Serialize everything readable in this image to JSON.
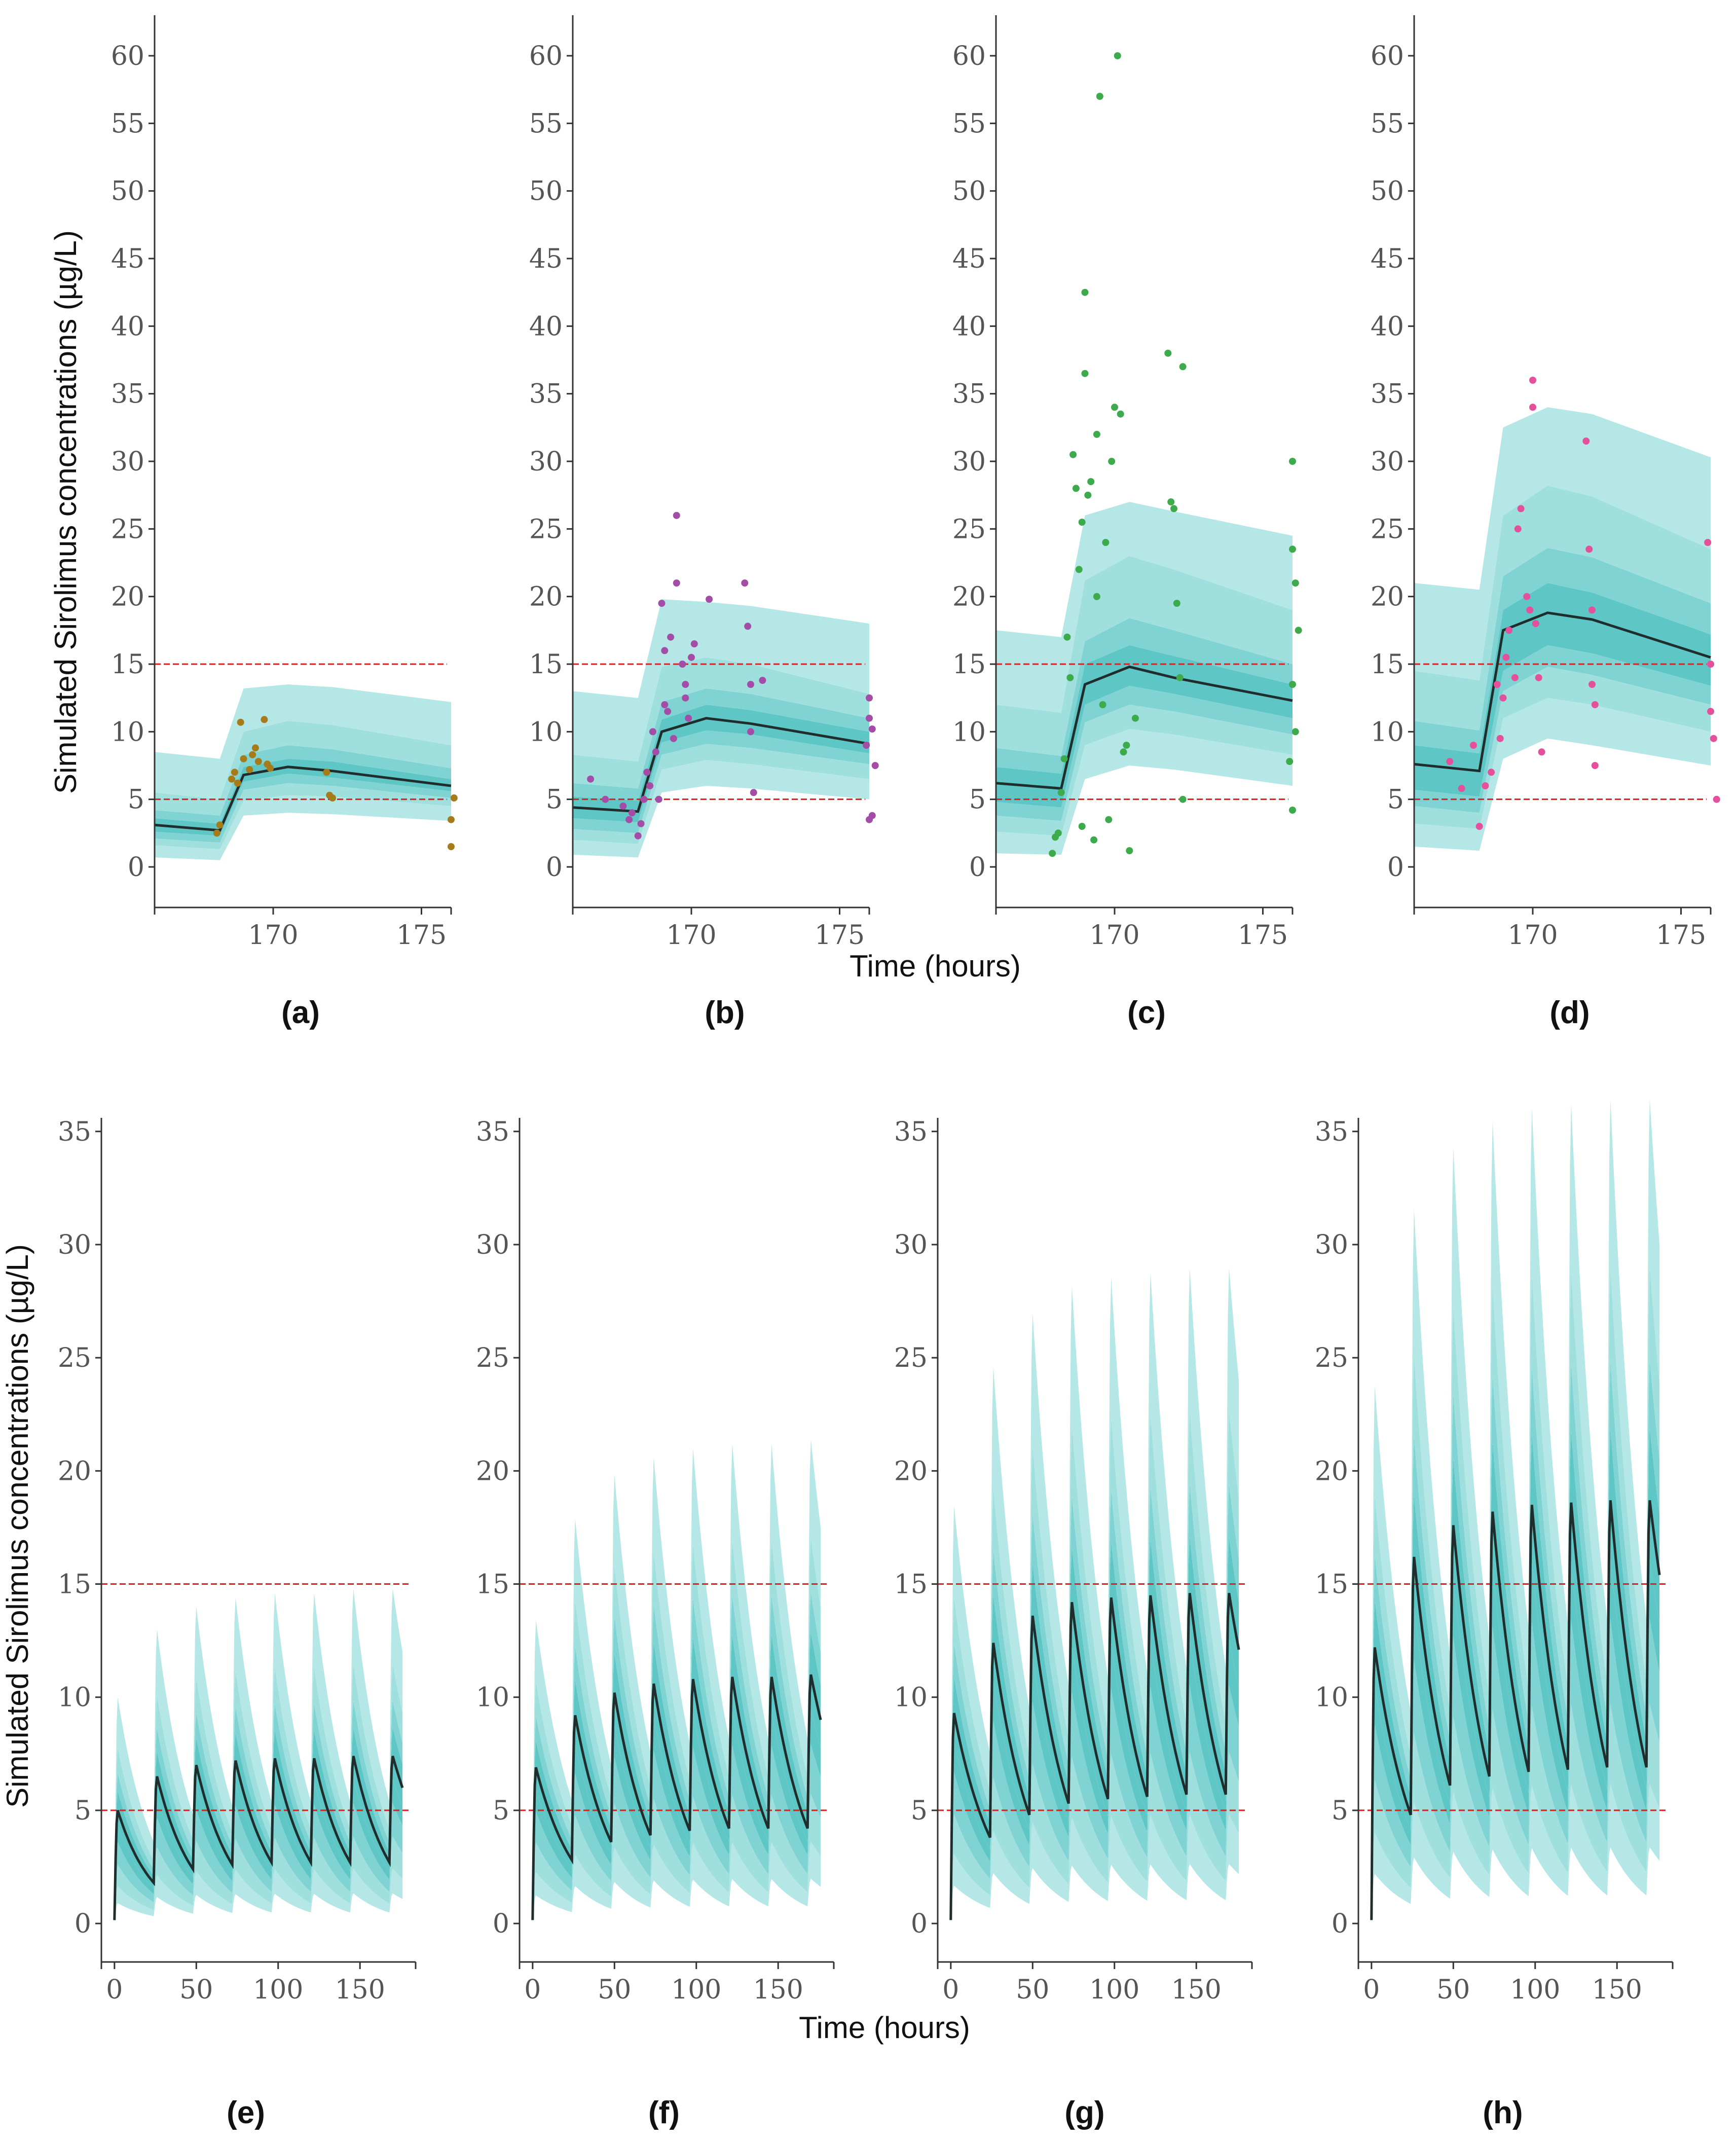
{
  "chart_data": {
    "type": "line",
    "top_row": {
      "ylabel": "Simulated Sirolimus concentrations (µg/L)",
      "xlabel": "Time (hours)",
      "xlim": [
        166,
        176
      ],
      "ylim": [
        -3,
        63
      ],
      "yticks": [
        "0",
        "5",
        "10",
        "15",
        "20",
        "25",
        "30",
        "35",
        "40",
        "45",
        "50",
        "55",
        "60"
      ],
      "ytick_values": [
        0,
        5,
        10,
        15,
        20,
        25,
        30,
        35,
        40,
        45,
        50,
        55,
        60
      ],
      "xticks": [
        "170",
        "175"
      ],
      "xtick_values": [
        170,
        175
      ],
      "reference_lines": [
        5,
        15
      ],
      "time": [
        166,
        168.2,
        169,
        170.5,
        172,
        176
      ],
      "panels": [
        {
          "label": "(a)",
          "dot_color": "#a67c1a",
          "median": [
            3.1,
            2.7,
            6.8,
            7.4,
            7.1,
            6.0
          ],
          "bands": [
            [
              0.7,
              0.5,
              3.8,
              4.0,
              3.9,
              3.4
            ],
            [
              1.6,
              1.3,
              4.9,
              5.3,
              5.2,
              4.5
            ],
            [
              2.1,
              1.8,
              5.7,
              6.2,
              6.0,
              5.1
            ],
            [
              2.6,
              2.3,
              6.3,
              6.9,
              6.6,
              5.6
            ],
            [
              3.6,
              3.2,
              7.4,
              8.0,
              7.8,
              6.5
            ],
            [
              4.2,
              3.8,
              8.3,
              9.0,
              8.7,
              7.3
            ],
            [
              5.5,
              5.0,
              10.0,
              10.8,
              10.5,
              9.0
            ],
            [
              8.5,
              8.0,
              13.2,
              13.5,
              13.3,
              12.2
            ]
          ],
          "observed": [
            [
              168.1,
              2.5
            ],
            [
              168.2,
              3.1
            ],
            [
              168.6,
              6.5
            ],
            [
              168.7,
              7.0
            ],
            [
              168.8,
              6.2
            ],
            [
              168.9,
              10.7
            ],
            [
              169,
              8.0
            ],
            [
              169.2,
              7.2
            ],
            [
              169.3,
              8.3
            ],
            [
              169.4,
              8.8
            ],
            [
              169.5,
              7.8
            ],
            [
              169.7,
              10.9
            ],
            [
              169.8,
              7.6
            ],
            [
              169.9,
              7.3
            ],
            [
              171.8,
              7.0
            ],
            [
              171.9,
              5.3
            ],
            [
              172,
              5.1
            ],
            [
              176,
              1.5
            ],
            [
              176,
              3.5
            ],
            [
              176.1,
              5.1
            ]
          ]
        },
        {
          "label": "(b)",
          "dot_color": "#a44da7",
          "median": [
            4.4,
            4.1,
            10.0,
            11.0,
            10.6,
            9.1
          ],
          "bands": [
            [
              0.9,
              0.7,
              5.5,
              6.0,
              5.8,
              5.0
            ],
            [
              2.0,
              1.7,
              7.2,
              7.9,
              7.6,
              6.5
            ],
            [
              2.8,
              2.5,
              8.3,
              9.1,
              8.8,
              7.6
            ],
            [
              3.6,
              3.3,
              9.2,
              10.1,
              9.8,
              8.4
            ],
            [
              5.2,
              4.9,
              10.9,
              12.0,
              11.6,
              10.0
            ],
            [
              6.2,
              5.8,
              12.2,
              13.2,
              12.8,
              11.0
            ],
            [
              8.3,
              7.8,
              14.8,
              15.5,
              15.0,
              12.8
            ],
            [
              13.0,
              12.5,
              19.8,
              19.6,
              19.3,
              18.0
            ]
          ],
          "observed": [
            [
              166.6,
              6.5
            ],
            [
              167.1,
              5.0
            ],
            [
              167.7,
              4.5
            ],
            [
              167.9,
              3.5
            ],
            [
              168,
              4.0
            ],
            [
              168.2,
              2.3
            ],
            [
              168.3,
              3.2
            ],
            [
              168.4,
              5.0
            ],
            [
              168.5,
              7.0
            ],
            [
              168.6,
              6.0
            ],
            [
              168.7,
              10.0
            ],
            [
              168.8,
              8.5
            ],
            [
              168.9,
              5.0
            ],
            [
              169,
              19.5
            ],
            [
              169.1,
              16.0
            ],
            [
              169.1,
              12.0
            ],
            [
              169.2,
              11.5
            ],
            [
              169.3,
              17.0
            ],
            [
              169.4,
              9.5
            ],
            [
              169.5,
              21.0
            ],
            [
              169.5,
              26.0
            ],
            [
              169.7,
              15.0
            ],
            [
              169.8,
              13.5
            ],
            [
              169.8,
              12.5
            ],
            [
              169.9,
              11.0
            ],
            [
              170,
              15.5
            ],
            [
              170.1,
              16.5
            ],
            [
              170.6,
              19.8
            ],
            [
              171.8,
              21.0
            ],
            [
              171.9,
              17.8
            ],
            [
              172,
              13.5
            ],
            [
              172,
              10.0
            ],
            [
              172.1,
              5.5
            ],
            [
              172.4,
              13.8
            ],
            [
              176,
              12.5
            ],
            [
              176,
              11.0
            ],
            [
              176.1,
              10.2
            ],
            [
              176,
              3.5
            ],
            [
              176.1,
              3.8
            ],
            [
              176.2,
              7.5
            ],
            [
              175.9,
              9.0
            ]
          ]
        },
        {
          "label": "(c)",
          "dot_color": "#3daa4b",
          "median": [
            6.2,
            5.8,
            13.5,
            14.8,
            14.0,
            12.3
          ],
          "bands": [
            [
              1.0,
              0.9,
              6.5,
              7.5,
              7.2,
              6.0
            ],
            [
              2.6,
              2.3,
              9.0,
              10.2,
              9.8,
              8.3
            ],
            [
              3.8,
              3.4,
              10.7,
              12.0,
              11.5,
              9.8
            ],
            [
              4.8,
              4.4,
              12.0,
              13.4,
              12.8,
              11.0
            ],
            [
              7.4,
              6.9,
              15.0,
              16.4,
              15.6,
              13.5
            ],
            [
              8.8,
              8.2,
              16.7,
              18.4,
              17.5,
              15.0
            ],
            [
              12.0,
              11.4,
              21.2,
              23.0,
              22.0,
              19.0
            ],
            [
              17.5,
              17.0,
              26.0,
              27.0,
              26.3,
              24.5
            ]
          ],
          "observed": [
            [
              167.9,
              1.0
            ],
            [
              168,
              2.2
            ],
            [
              168.1,
              2.5
            ],
            [
              168.2,
              5.5
            ],
            [
              168.3,
              8.0
            ],
            [
              168.4,
              17.0
            ],
            [
              168.5,
              14.0
            ],
            [
              168.6,
              30.5
            ],
            [
              168.7,
              28.0
            ],
            [
              168.8,
              22.0
            ],
            [
              168.9,
              25.5
            ],
            [
              168.9,
              3.0
            ],
            [
              169,
              42.5
            ],
            [
              169,
              36.5
            ],
            [
              169.1,
              27.5
            ],
            [
              169.2,
              28.5
            ],
            [
              169.3,
              2.0
            ],
            [
              169.4,
              32.0
            ],
            [
              169.4,
              20.0
            ],
            [
              169.5,
              57.0
            ],
            [
              169.6,
              12.0
            ],
            [
              169.7,
              24.0
            ],
            [
              169.8,
              3.5
            ],
            [
              169.9,
              30.0
            ],
            [
              170,
              34.0
            ],
            [
              170.1,
              60.0
            ],
            [
              170.2,
              33.5
            ],
            [
              170.3,
              8.5
            ],
            [
              170.4,
              9.0
            ],
            [
              170.5,
              1.2
            ],
            [
              170.7,
              11.0
            ],
            [
              171.8,
              38.0
            ],
            [
              171.9,
              27.0
            ],
            [
              172,
              26.5
            ],
            [
              172.1,
              19.5
            ],
            [
              172.2,
              14.0
            ],
            [
              172.3,
              37.0
            ],
            [
              172.3,
              5.0
            ],
            [
              176,
              30.0
            ],
            [
              176,
              23.5
            ],
            [
              176.1,
              21.0
            ],
            [
              176,
              13.5
            ],
            [
              176.1,
              10.0
            ],
            [
              175.9,
              7.8
            ],
            [
              176,
              4.2
            ],
            [
              176.2,
              17.5
            ]
          ]
        },
        {
          "label": "(d)",
          "dot_color": "#e4509b",
          "median": [
            7.6,
            7.1,
            17.5,
            18.8,
            18.3,
            15.5
          ],
          "bands": [
            [
              1.5,
              1.2,
              8.0,
              9.5,
              9.0,
              7.5
            ],
            [
              3.2,
              2.8,
              11.0,
              12.5,
              12.0,
              10.0
            ],
            [
              4.5,
              4.0,
              13.0,
              14.8,
              14.2,
              12.0
            ],
            [
              5.7,
              5.2,
              14.5,
              16.4,
              15.8,
              13.4
            ],
            [
              9.0,
              8.4,
              19.0,
              21.0,
              20.3,
              17.2
            ],
            [
              10.8,
              10.1,
              21.5,
              23.6,
              22.9,
              19.5
            ],
            [
              14.5,
              13.8,
              26.0,
              28.2,
              27.4,
              23.5
            ],
            [
              21.0,
              20.5,
              32.5,
              34.0,
              33.5,
              30.3
            ]
          ],
          "observed": [
            [
              167.2,
              7.8
            ],
            [
              167.6,
              5.8
            ],
            [
              168,
              9.0
            ],
            [
              168.2,
              3.0
            ],
            [
              168.4,
              6.0
            ],
            [
              168.6,
              7.0
            ],
            [
              168.8,
              13.5
            ],
            [
              168.9,
              9.5
            ],
            [
              169,
              12.5
            ],
            [
              169.1,
              15.5
            ],
            [
              169.2,
              17.5
            ],
            [
              169.4,
              14.0
            ],
            [
              169.5,
              25.0
            ],
            [
              169.6,
              26.5
            ],
            [
              169.8,
              20.0
            ],
            [
              169.9,
              19.0
            ],
            [
              170,
              36.0
            ],
            [
              170,
              34.0
            ],
            [
              170.1,
              18.0
            ],
            [
              170.2,
              14.0
            ],
            [
              170.3,
              8.5
            ],
            [
              171.8,
              31.5
            ],
            [
              171.9,
              23.5
            ],
            [
              172,
              19.0
            ],
            [
              172,
              13.5
            ],
            [
              172.1,
              12.0
            ],
            [
              172.1,
              7.5
            ],
            [
              175.9,
              24.0
            ],
            [
              176,
              15.0
            ],
            [
              176,
              11.5
            ],
            [
              176.1,
              9.5
            ],
            [
              176.2,
              5.0
            ]
          ]
        }
      ]
    },
    "bottom_row": {
      "ylabel": "Simulated Sirolimus concentrations (µg/L)",
      "xlabel": "Time (hours)",
      "xlim": [
        -8,
        184
      ],
      "ylim": [
        -1.7,
        35.6
      ],
      "yticks": [
        "0",
        "5",
        "10",
        "15",
        "20",
        "25",
        "30",
        "35"
      ],
      "ytick_values": [
        0,
        5,
        10,
        15,
        20,
        25,
        30,
        35
      ],
      "xticks": [
        "0",
        "50",
        "100",
        "150"
      ],
      "xtick_values": [
        0,
        50,
        100,
        150
      ],
      "reference_lines": [
        5,
        15
      ],
      "dosing_interval_h": 24,
      "end_time_h": 176,
      "band_ratios": [
        0.18,
        0.33,
        0.52,
        0.72,
        0.86,
        1.17,
        1.33,
        1.55,
        1.85
      ],
      "panels": [
        {
          "label": "(e)",
          "peaks": [
            5.0,
            6.5,
            7.0,
            7.2,
            7.3,
            7.3,
            7.4,
            7.4
          ],
          "troughs": [
            1.8,
            2.4,
            2.6,
            2.7,
            2.7,
            2.7,
            2.7
          ],
          "end_value": 6.0,
          "band_top_end": 12.0
        },
        {
          "label": "(f)",
          "peaks": [
            6.9,
            9.2,
            10.2,
            10.6,
            10.8,
            10.9,
            10.9,
            11.0
          ],
          "troughs": [
            2.8,
            3.6,
            3.9,
            4.1,
            4.2,
            4.2,
            4.2
          ],
          "end_value": 9.0,
          "band_top_end": 17.5
        },
        {
          "label": "(g)",
          "peaks": [
            9.3,
            12.4,
            13.6,
            14.2,
            14.4,
            14.5,
            14.6,
            14.6
          ],
          "troughs": [
            3.8,
            4.8,
            5.3,
            5.5,
            5.6,
            5.7,
            5.7
          ],
          "end_value": 12.1,
          "band_top_end": 24.0
        },
        {
          "label": "(h)",
          "peaks": [
            12.2,
            16.2,
            17.6,
            18.2,
            18.5,
            18.6,
            18.7,
            18.7
          ],
          "troughs": [
            4.8,
            6.1,
            6.5,
            6.7,
            6.8,
            6.9,
            6.9
          ],
          "end_value": 15.4,
          "band_top_end": 30.0
        }
      ]
    }
  },
  "style": {
    "band_colors": [
      "#b4e7e6",
      "#9fdfde",
      "#7fd3d2",
      "#5ec7c6"
    ],
    "band_core": "#41bcbb",
    "median_color": "#1f2d2d",
    "reference_color": "#e02020",
    "axis_color": "#333333"
  }
}
